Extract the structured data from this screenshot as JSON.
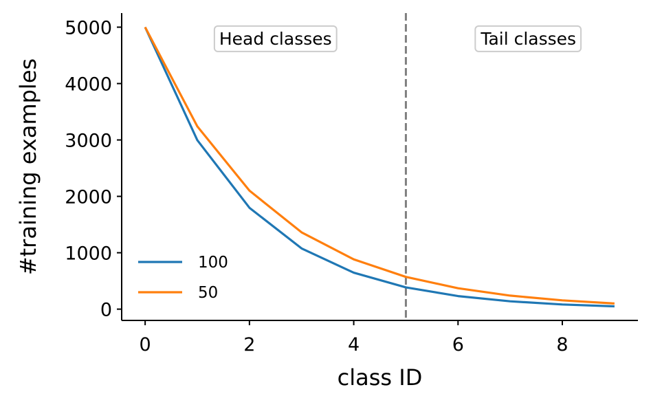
{
  "chart_data": {
    "type": "line",
    "title": "",
    "xlabel": "class ID",
    "ylabel": "#training examples",
    "xlim": [
      -0.45,
      9.45
    ],
    "ylim": [
      -200,
      5250
    ],
    "x": [
      0,
      1,
      2,
      3,
      4,
      5,
      6,
      7,
      8,
      9
    ],
    "xticks": [
      0,
      2,
      4,
      6,
      8
    ],
    "yticks": [
      0,
      1000,
      2000,
      3000,
      4000,
      5000
    ],
    "grid": false,
    "legend_position": "lower-left",
    "series": [
      {
        "name": "100",
        "color": "#1f77b4",
        "values": [
          5000,
          2997,
          1797,
          1077,
          646,
          387,
          232,
          139,
          83,
          50
        ]
      },
      {
        "name": "50",
        "color": "#ff7f0e",
        "values": [
          5000,
          3241,
          2101,
          1362,
          883,
          572,
          371,
          240,
          156,
          100
        ]
      }
    ],
    "vline": {
      "x": 5,
      "color": "#808080",
      "style": "dashed"
    },
    "annotations": [
      {
        "text": "Head classes",
        "x": 2.5,
        "y": 4800
      },
      {
        "text": "Tail classes",
        "x": 7.35,
        "y": 4800
      }
    ]
  }
}
